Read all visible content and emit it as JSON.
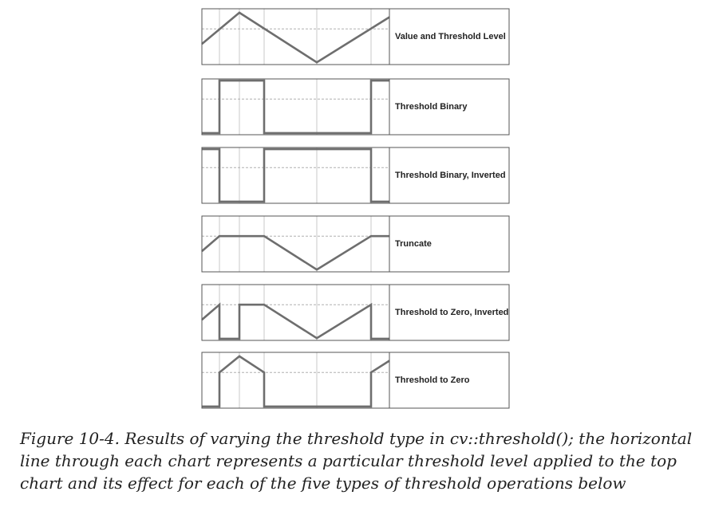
{
  "panels": [
    {
      "id": "value",
      "label": "Value and Threshold Level"
    },
    {
      "id": "binary",
      "label": "Threshold Binary"
    },
    {
      "id": "binary-inv",
      "label": "Threshold Binary, Inverted"
    },
    {
      "id": "truncate",
      "label": "Truncate"
    },
    {
      "id": "tozero-inv",
      "label": "Threshold to Zero, Inverted"
    },
    {
      "id": "tozero",
      "label": "Threshold to Zero"
    }
  ],
  "caption": "Figure 10-4. Results of varying the threshold type in cv::threshold(); the horizontal line through each chart represents a particular threshold level applied to the top chart and its effect for each of the five types of threshold operations below",
  "colors": {
    "signal": "#6e6e6e",
    "frame": "#555555",
    "grid": "#c8c8c8"
  }
}
